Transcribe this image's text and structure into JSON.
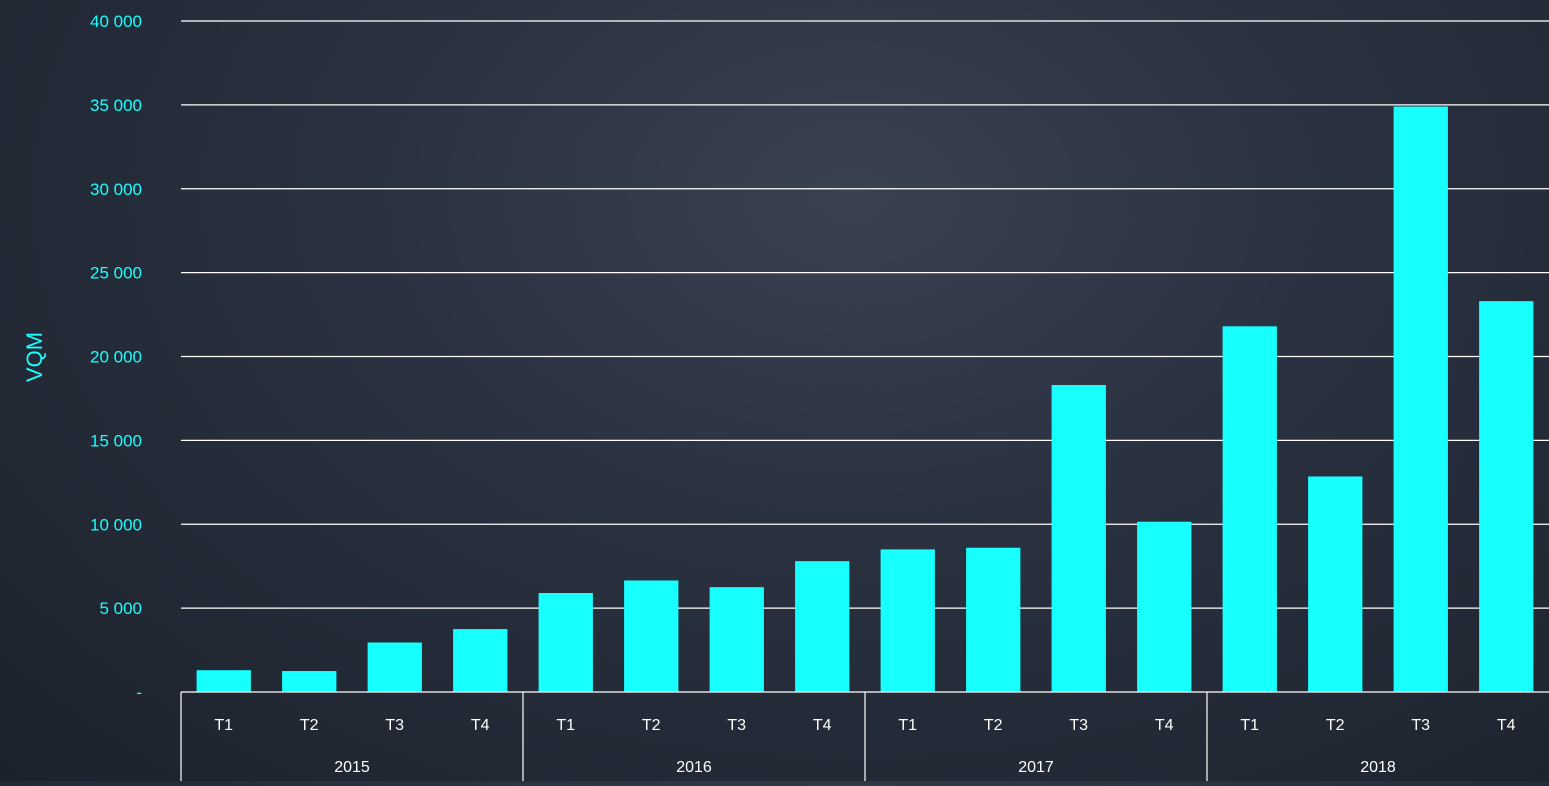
{
  "colors": {
    "bar": "#18ffff",
    "axis_label": "#18ffff",
    "tick_label": "#18ffff",
    "grid": "#ffffff",
    "category_label": "#ffffff"
  },
  "chart_data": {
    "type": "bar",
    "title": "",
    "xlabel": "",
    "ylabel": "VQM",
    "ylim": [
      0,
      40000
    ],
    "y_ticks": [
      {
        "value": 0,
        "label": "-"
      },
      {
        "value": 5000,
        "label": "5 000"
      },
      {
        "value": 10000,
        "label": "10 000"
      },
      {
        "value": 15000,
        "label": "15 000"
      },
      {
        "value": 20000,
        "label": "20 000"
      },
      {
        "value": 25000,
        "label": "25 000"
      },
      {
        "value": 30000,
        "label": "30 000"
      },
      {
        "value": 35000,
        "label": "35 000"
      },
      {
        "value": 40000,
        "label": "40 000"
      }
    ],
    "grid": true,
    "legend": "none",
    "groups": [
      {
        "year": "2015",
        "quarters": [
          "T1",
          "T2",
          "T3",
          "T4"
        ],
        "values": [
          1300,
          1250,
          2950,
          3750
        ]
      },
      {
        "year": "2016",
        "quarters": [
          "T1",
          "T2",
          "T3",
          "T4"
        ],
        "values": [
          5900,
          6650,
          6250,
          7800
        ]
      },
      {
        "year": "2017",
        "quarters": [
          "T1",
          "T2",
          "T3",
          "T4"
        ],
        "values": [
          8500,
          8600,
          18300,
          10150
        ]
      },
      {
        "year": "2018",
        "quarters": [
          "T1",
          "T2",
          "T3",
          "T4"
        ],
        "values": [
          21800,
          12850,
          34900,
          23300
        ]
      }
    ]
  }
}
